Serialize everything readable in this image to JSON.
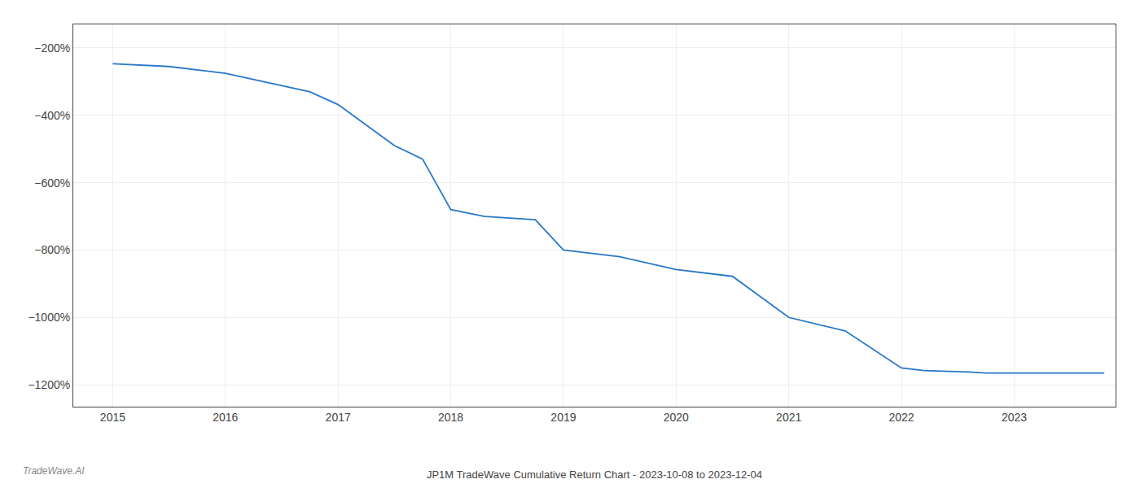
{
  "chart_data": {
    "type": "line",
    "title": "JP1M TradeWave Cumulative Return Chart - 2023-10-08 to 2023-12-04",
    "annotations": [
      "TradeWave.AI"
    ],
    "x": [
      2015.0,
      2015.5,
      2016.0,
      2016.75,
      2017.0,
      2017.5,
      2017.75,
      2018.0,
      2018.3,
      2018.75,
      2019.0,
      2019.5,
      2020.0,
      2020.5,
      2021.0,
      2021.5,
      2022.0,
      2022.2,
      2022.6,
      2022.75,
      2023.0,
      2023.8
    ],
    "values": [
      -247,
      -255,
      -275,
      -330,
      -368,
      -490,
      -530,
      -680,
      -700,
      -710,
      -800,
      -820,
      -858,
      -878,
      -1000,
      -1040,
      -1150,
      -1158,
      -1162,
      -1165,
      -1165,
      -1165
    ],
    "color": "#2878c8",
    "xlim": [
      2014.65,
      2023.9
    ],
    "ylim": [
      -1265,
      -130
    ],
    "xticks": [
      2015,
      2016,
      2017,
      2018,
      2019,
      2020,
      2021,
      2022,
      2023
    ],
    "yticks": [
      {
        "value": -200,
        "label": "−200%"
      },
      {
        "value": -400,
        "label": "−400%"
      },
      {
        "value": -600,
        "label": "−600%"
      },
      {
        "value": -800,
        "label": "−800%"
      },
      {
        "value": -1000,
        "label": "−1000%"
      },
      {
        "value": -1200,
        "label": "−1200%"
      }
    ],
    "grid": true
  }
}
